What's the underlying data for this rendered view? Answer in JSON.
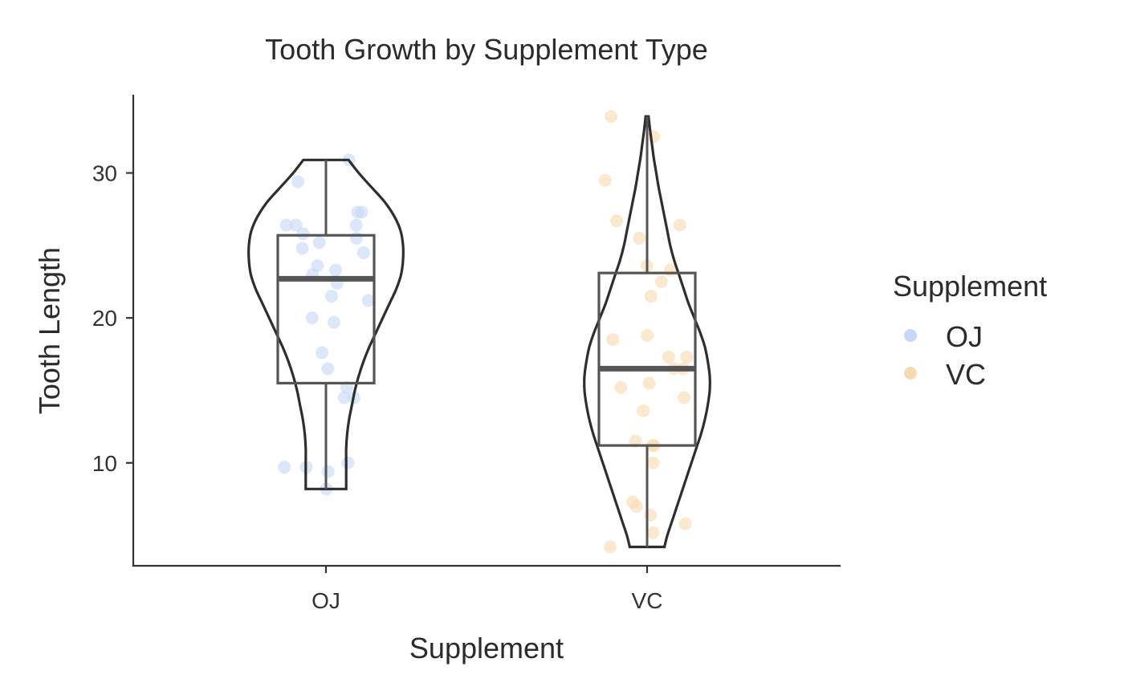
{
  "chart_data": {
    "type": "violin",
    "title": "Tooth Growth by Supplement Type",
    "xlabel": "Supplement",
    "ylabel": "Tooth Length",
    "categories": [
      "OJ",
      "VC"
    ],
    "yticks": [
      10,
      20,
      30
    ],
    "ylim": [
      2.9,
      35.4
    ],
    "legend": {
      "title": "Supplement",
      "placement": "right",
      "entries": [
        {
          "label": "OJ",
          "color": "#c6d8f5"
        },
        {
          "label": "VC",
          "color": "#f7dbb0"
        }
      ]
    },
    "colors": {
      "OJ": "#c6d8f5",
      "VC": "#f7dbb0"
    },
    "boxplots": [
      {
        "category": "OJ",
        "min": 8.2,
        "q1": 15.5,
        "median": 22.7,
        "q3": 25.7,
        "max": 30.9
      },
      {
        "category": "VC",
        "min": 4.2,
        "q1": 11.2,
        "median": 16.5,
        "q3": 23.1,
        "max": 33.9
      }
    ],
    "violins": [
      {
        "category": "OJ",
        "min": 8.2,
        "max": 30.9,
        "profile": [
          [
            8.2,
            0.42
          ],
          [
            9,
            0.42
          ],
          [
            10,
            0.42
          ],
          [
            11,
            0.42
          ],
          [
            12,
            0.44
          ],
          [
            13,
            0.48
          ],
          [
            14,
            0.54
          ],
          [
            15,
            0.6
          ],
          [
            16,
            0.68
          ],
          [
            17,
            0.78
          ],
          [
            18,
            0.9
          ],
          [
            19,
            1.04
          ],
          [
            20,
            1.18
          ],
          [
            21,
            1.32
          ],
          [
            22,
            1.46
          ],
          [
            23,
            1.56
          ],
          [
            24,
            1.6
          ],
          [
            25,
            1.6
          ],
          [
            26,
            1.55
          ],
          [
            27,
            1.42
          ],
          [
            28,
            1.22
          ],
          [
            29,
            0.95
          ],
          [
            30,
            0.68
          ],
          [
            30.9,
            0.47
          ]
        ]
      },
      {
        "category": "VC",
        "min": 4.2,
        "max": 33.9,
        "profile": [
          [
            4.2,
            0.36
          ],
          [
            5,
            0.42
          ],
          [
            6,
            0.52
          ],
          [
            7,
            0.62
          ],
          [
            8,
            0.72
          ],
          [
            9,
            0.82
          ],
          [
            10,
            0.92
          ],
          [
            11,
            1.02
          ],
          [
            12,
            1.12
          ],
          [
            13,
            1.2
          ],
          [
            14,
            1.26
          ],
          [
            15,
            1.3
          ],
          [
            16,
            1.3
          ],
          [
            17,
            1.26
          ],
          [
            18,
            1.2
          ],
          [
            19,
            1.1
          ],
          [
            20,
            0.98
          ],
          [
            21,
            0.86
          ],
          [
            22,
            0.76
          ],
          [
            23,
            0.66
          ],
          [
            24,
            0.56
          ],
          [
            25,
            0.48
          ],
          [
            26,
            0.42
          ],
          [
            27,
            0.36
          ],
          [
            28,
            0.3
          ],
          [
            29,
            0.24
          ],
          [
            30,
            0.19
          ],
          [
            31,
            0.14
          ],
          [
            32,
            0.1
          ],
          [
            33,
            0.06
          ],
          [
            33.9,
            0.03
          ]
        ]
      }
    ],
    "points": [
      {
        "category": "OJ",
        "values": [
          15.2,
          21.5,
          17.6,
          9.7,
          14.5,
          10.0,
          8.2,
          9.4,
          16.5,
          9.7,
          19.7,
          23.3,
          23.6,
          26.4,
          20.0,
          25.2,
          25.8,
          21.2,
          14.5,
          27.3,
          25.5,
          26.4,
          22.4,
          24.5,
          24.8,
          30.9,
          26.4,
          27.3,
          29.4,
          23.0
        ]
      },
      {
        "category": "VC",
        "values": [
          4.2,
          11.5,
          7.3,
          5.8,
          6.4,
          10.0,
          11.2,
          11.2,
          5.2,
          7.0,
          16.5,
          16.5,
          15.2,
          17.3,
          22.5,
          17.3,
          13.6,
          14.5,
          18.8,
          15.5,
          23.6,
          18.5,
          33.9,
          25.5,
          26.4,
          32.5,
          26.7,
          21.5,
          23.3,
          29.5
        ]
      }
    ]
  }
}
